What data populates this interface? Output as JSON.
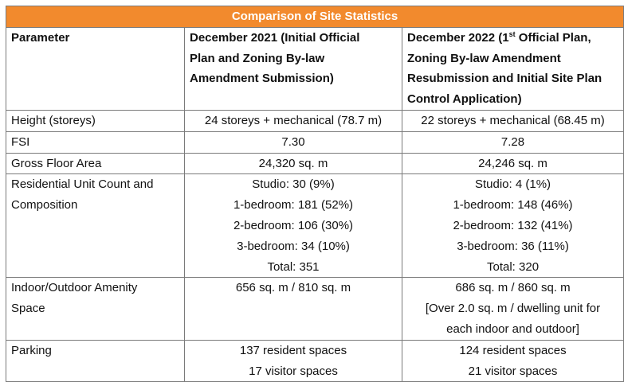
{
  "title": "Comparison of Site Statistics",
  "colors": {
    "title_bg": "#f28a2d",
    "title_text": "#ffffff",
    "border": "#7a7a7a"
  },
  "headers": {
    "parameter": "Parameter",
    "col2_lines": [
      "December 2021 (Initial Official",
      "Plan and Zoning By-law",
      "Amendment Submission)"
    ],
    "col3_line1_pre": "December 2022 (1",
    "col3_line1_sup": "st",
    "col3_line1_post": " Official Plan,",
    "col3_lines_rest": [
      "Zoning By-law Amendment",
      "Resubmission and Initial Site Plan",
      "Control Application)"
    ]
  },
  "rows": {
    "height": {
      "param": "Height (storeys)",
      "dec2021": "24 storeys + mechanical (78.7 m)",
      "dec2022": "22 storeys + mechanical (68.45 m)"
    },
    "fsi": {
      "param": "FSI",
      "dec2021": "7.30",
      "dec2022": "7.28"
    },
    "gfa": {
      "param": "Gross Floor Area",
      "dec2021": "24,320 sq. m",
      "dec2022": "24,246 sq. m"
    },
    "units": {
      "param_lines": [
        "Residential Unit Count and",
        "Composition"
      ],
      "dec2021": [
        "Studio: 30 (9%)",
        "1-bedroom: 181 (52%)",
        "2-bedroom: 106 (30%)",
        "3-bedroom: 34 (10%)",
        "Total: 351"
      ],
      "dec2022": [
        "Studio: 4 (1%)",
        "1-bedroom: 148 (46%)",
        "2-bedroom: 132 (41%)",
        "3-bedroom: 36 (11%)",
        "Total: 320"
      ]
    },
    "amenity": {
      "param_lines": [
        "Indoor/Outdoor Amenity",
        "Space"
      ],
      "dec2021": "656 sq. m / 810 sq. m",
      "dec2022": [
        "686 sq. m / 860 sq. m",
        "[Over 2.0 sq. m / dwelling unit for",
        "each indoor and outdoor]"
      ]
    },
    "parking": {
      "param": "Parking",
      "dec2021": [
        "137 resident spaces",
        "17 visitor spaces"
      ],
      "dec2022": [
        "124 resident spaces",
        "21 visitor spaces"
      ]
    }
  }
}
